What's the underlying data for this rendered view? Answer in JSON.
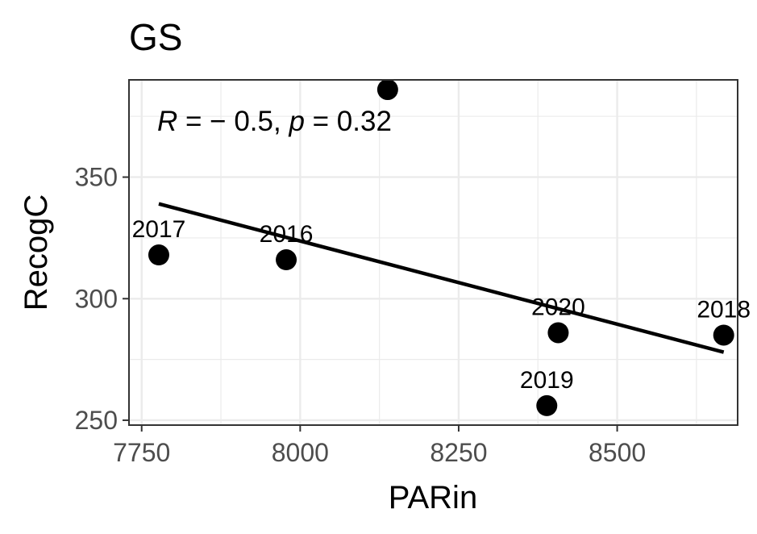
{
  "chart_data": {
    "type": "scatter",
    "title": "GS",
    "xlabel": "PARin",
    "ylabel": "RecogC",
    "xlim": [
      7730,
      8690
    ],
    "ylim": [
      248,
      390
    ],
    "xticks": [
      7750,
      8000,
      8250,
      8500
    ],
    "xtick_labels": [
      "7750",
      "8000",
      "8250",
      "8500"
    ],
    "yticks": [
      250,
      300,
      350
    ],
    "ytick_labels": [
      "250",
      "300",
      "350"
    ],
    "grid": true,
    "points": [
      {
        "x": 7777,
        "y": 318,
        "label": "2017"
      },
      {
        "x": 7978,
        "y": 316,
        "label": "2016"
      },
      {
        "x": 8138,
        "y": 386,
        "label": ""
      },
      {
        "x": 8389,
        "y": 256,
        "label": "2019"
      },
      {
        "x": 8407,
        "y": 286,
        "label": "2020"
      },
      {
        "x": 8668,
        "y": 285,
        "label": "2018"
      }
    ],
    "fit_line": {
      "x": [
        7777,
        8668
      ],
      "y": [
        339,
        278
      ]
    },
    "annotation": {
      "r_label": "R",
      "r_text": " = − 0.5, ",
      "p_label": "p",
      "p_text": " = 0.32"
    },
    "colors": {
      "points": "#000000",
      "line": "#000000",
      "grid": "#ebebeb",
      "panel_border": "#333333"
    }
  }
}
